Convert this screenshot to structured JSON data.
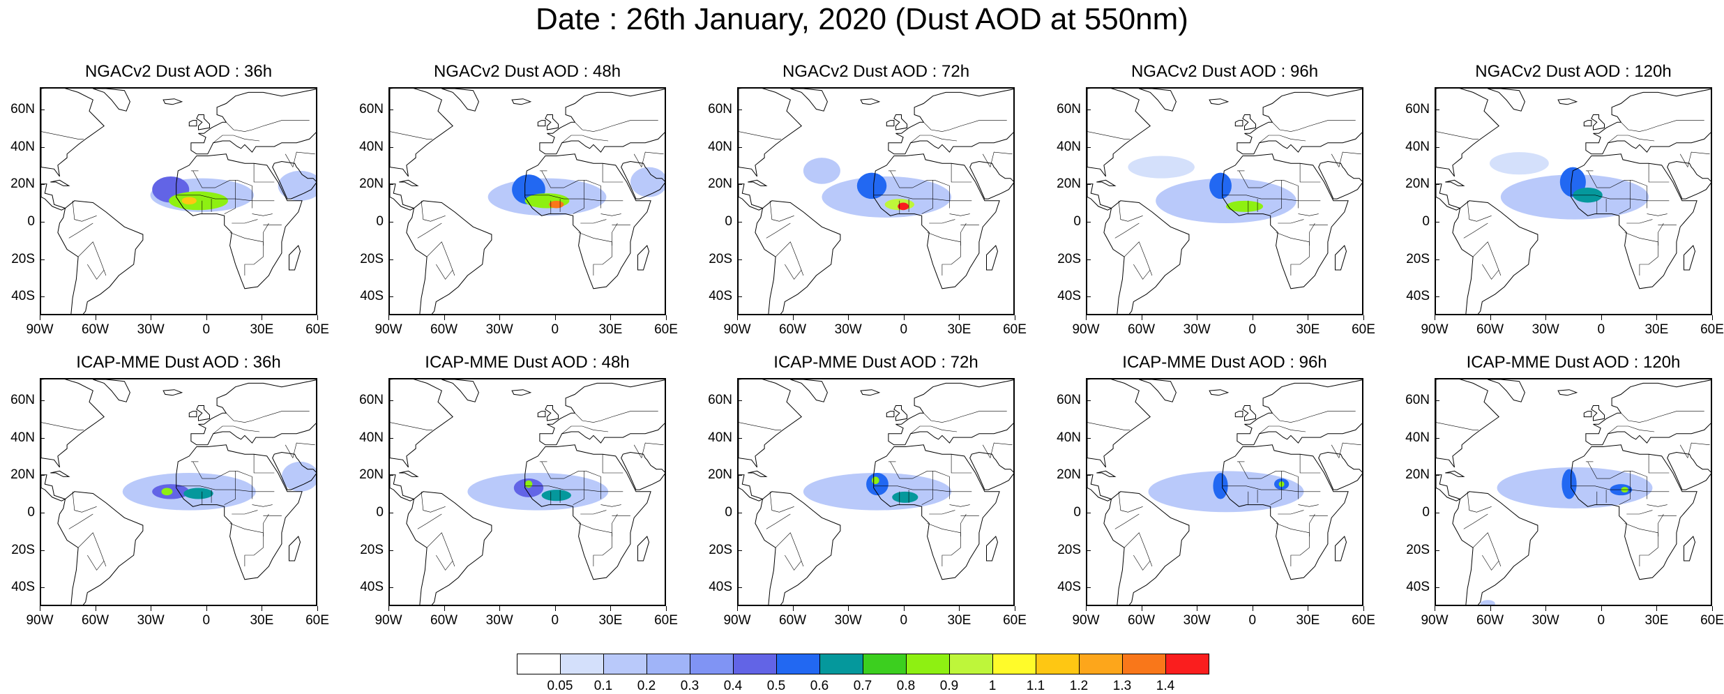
{
  "figure": {
    "title": "Date : 26th January, 2020 (Dust AOD at 550nm)"
  },
  "axes": {
    "y_ticks": [
      {
        "lat": 60,
        "label": "60N"
      },
      {
        "lat": 40,
        "label": "40N"
      },
      {
        "lat": 20,
        "label": "20N"
      },
      {
        "lat": 0,
        "label": "0"
      },
      {
        "lat": -20,
        "label": "20S"
      },
      {
        "lat": -40,
        "label": "40S"
      }
    ],
    "x_ticks": [
      {
        "lon": -90,
        "label": "90W"
      },
      {
        "lon": -60,
        "label": "60W"
      },
      {
        "lon": -30,
        "label": "30W"
      },
      {
        "lon": 0,
        "label": "0"
      },
      {
        "lon": 30,
        "label": "30E"
      },
      {
        "lon": 60,
        "label": "60E"
      }
    ],
    "lon_range": [
      -90,
      60
    ],
    "lat_range": [
      -50,
      72
    ]
  },
  "panels": [
    {
      "title": "NGACv2 Dust AOD : 36h",
      "model": "NGACv2",
      "lead": "36h",
      "dust": [
        {
          "lon": -3,
          "lat": 15,
          "rlon": 28,
          "rlat": 9,
          "aod": 0.18
        },
        {
          "lon": -20,
          "lat": 18,
          "rlon": 10,
          "rlat": 7,
          "aod": 0.45
        },
        {
          "lon": -5,
          "lat": 12,
          "rlon": 16,
          "rlat": 5,
          "aod": 0.8
        },
        {
          "lon": -10,
          "lat": 12,
          "rlon": 4,
          "rlat": 2,
          "aod": 1.1
        },
        {
          "lon": 50,
          "lat": 20,
          "rlon": 12,
          "rlat": 8,
          "aod": 0.12
        }
      ]
    },
    {
      "title": "NGACv2 Dust AOD : 48h",
      "model": "NGACv2",
      "lead": "48h",
      "dust": [
        {
          "lon": -5,
          "lat": 14,
          "rlon": 32,
          "rlat": 10,
          "aod": 0.18
        },
        {
          "lon": -15,
          "lat": 18,
          "rlon": 9,
          "rlat": 8,
          "aod": 0.5
        },
        {
          "lon": -5,
          "lat": 12,
          "rlon": 12,
          "rlat": 4,
          "aod": 0.85
        },
        {
          "lon": 0,
          "lat": 10,
          "rlon": 4,
          "rlat": 2,
          "aod": 1.3
        },
        {
          "lon": 50,
          "lat": 22,
          "rlon": 10,
          "rlat": 8,
          "aod": 0.12
        }
      ]
    },
    {
      "title": "NGACv2 Dust AOD : 72h",
      "model": "NGACv2",
      "lead": "72h",
      "dust": [
        {
          "lon": -10,
          "lat": 14,
          "rlon": 35,
          "rlat": 11,
          "aod": 0.15
        },
        {
          "lon": -18,
          "lat": 20,
          "rlon": 8,
          "rlat": 7,
          "aod": 0.55
        },
        {
          "lon": -3,
          "lat": 10,
          "rlon": 8,
          "rlat": 3,
          "aod": 0.9
        },
        {
          "lon": -1,
          "lat": 9,
          "rlon": 3,
          "rlat": 2,
          "aod": 1.4
        },
        {
          "lon": -45,
          "lat": 28,
          "rlon": 10,
          "rlat": 7,
          "aod": 0.1
        }
      ]
    },
    {
      "title": "NGACv2 Dust AOD : 96h",
      "model": "NGACv2",
      "lead": "96h",
      "dust": [
        {
          "lon": -15,
          "lat": 12,
          "rlon": 38,
          "rlat": 12,
          "aod": 0.12
        },
        {
          "lon": -18,
          "lat": 20,
          "rlon": 6,
          "rlat": 7,
          "aod": 0.5
        },
        {
          "lon": -5,
          "lat": 9,
          "rlon": 10,
          "rlat": 3,
          "aod": 0.8
        },
        {
          "lon": -50,
          "lat": 30,
          "rlon": 18,
          "rlat": 6,
          "aod": 0.08
        }
      ]
    },
    {
      "title": "NGACv2 Dust AOD : 120h",
      "model": "NGACv2",
      "lead": "120h",
      "dust": [
        {
          "lon": -15,
          "lat": 14,
          "rlon": 40,
          "rlat": 12,
          "aod": 0.1
        },
        {
          "lon": -16,
          "lat": 22,
          "rlon": 7,
          "rlat": 8,
          "aod": 0.5
        },
        {
          "lon": -8,
          "lat": 15,
          "rlon": 8,
          "rlat": 4,
          "aod": 0.65
        },
        {
          "lon": -45,
          "lat": 32,
          "rlon": 16,
          "rlat": 6,
          "aod": 0.08
        }
      ]
    },
    {
      "title": "ICAP-MME Dust AOD : 36h",
      "model": "ICAP-MME",
      "lead": "36h",
      "dust": [
        {
          "lon": -10,
          "lat": 12,
          "rlon": 36,
          "rlat": 10,
          "aod": 0.15
        },
        {
          "lon": -20,
          "lat": 12,
          "rlon": 10,
          "rlat": 4,
          "aod": 0.45
        },
        {
          "lon": -5,
          "lat": 11,
          "rlon": 8,
          "rlat": 3,
          "aod": 0.6
        },
        {
          "lon": -22,
          "lat": 12,
          "rlon": 3,
          "rlat": 2,
          "aod": 0.85
        },
        {
          "lon": 50,
          "lat": 20,
          "rlon": 10,
          "rlat": 8,
          "aod": 0.15
        }
      ]
    },
    {
      "title": "ICAP-MME Dust AOD : 48h",
      "model": "ICAP-MME",
      "lead": "48h",
      "dust": [
        {
          "lon": -10,
          "lat": 12,
          "rlon": 38,
          "rlat": 10,
          "aod": 0.15
        },
        {
          "lon": -15,
          "lat": 14,
          "rlon": 8,
          "rlat": 5,
          "aod": 0.45
        },
        {
          "lon": 0,
          "lat": 10,
          "rlon": 8,
          "rlat": 3,
          "aod": 0.6
        },
        {
          "lon": -15,
          "lat": 16,
          "rlon": 2,
          "rlat": 2,
          "aod": 0.85
        }
      ]
    },
    {
      "title": "ICAP-MME Dust AOD : 72h",
      "model": "ICAP-MME",
      "lead": "72h",
      "dust": [
        {
          "lon": -15,
          "lat": 12,
          "rlon": 40,
          "rlat": 10,
          "aod": 0.15
        },
        {
          "lon": -15,
          "lat": 16,
          "rlon": 6,
          "rlat": 6,
          "aod": 0.5
        },
        {
          "lon": 0,
          "lat": 9,
          "rlon": 7,
          "rlat": 3,
          "aod": 0.6
        },
        {
          "lon": -16,
          "lat": 18,
          "rlon": 2,
          "rlat": 2,
          "aod": 0.85
        }
      ]
    },
    {
      "title": "ICAP-MME Dust AOD : 96h",
      "model": "ICAP-MME",
      "lead": "96h",
      "dust": [
        {
          "lon": -15,
          "lat": 12,
          "rlon": 42,
          "rlat": 11,
          "aod": 0.12
        },
        {
          "lon": -18,
          "lat": 15,
          "rlon": 4,
          "rlat": 7,
          "aod": 0.5
        },
        {
          "lon": 15,
          "lat": 16,
          "rlon": 4,
          "rlat": 3,
          "aod": 0.55
        },
        {
          "lon": 15,
          "lat": 16,
          "rlon": 1.5,
          "rlat": 1.5,
          "aod": 0.85
        }
      ]
    },
    {
      "title": "ICAP-MME Dust AOD : 120h",
      "model": "ICAP-MME",
      "lead": "120h",
      "dust": [
        {
          "lon": -15,
          "lat": 14,
          "rlon": 42,
          "rlat": 11,
          "aod": 0.12
        },
        {
          "lon": -18,
          "lat": 16,
          "rlon": 4,
          "rlat": 8,
          "aod": 0.5
        },
        {
          "lon": 10,
          "lat": 13,
          "rlon": 6,
          "rlat": 3,
          "aod": 0.55
        },
        {
          "lon": 12,
          "lat": 13,
          "rlon": 2,
          "rlat": 1.5,
          "aod": 0.85
        },
        {
          "lon": -62,
          "lat": -48,
          "rlon": 4,
          "rlat": 2,
          "aod": 0.12
        }
      ]
    }
  ],
  "colorbar": {
    "colors": [
      "#ffffff",
      "#d4e0fb",
      "#b9c9fa",
      "#a0b4f8",
      "#8094f4",
      "#6264e6",
      "#2268f2",
      "#05989c",
      "#3ccf1f",
      "#8ef012",
      "#bef63a",
      "#fffb2a",
      "#fec713",
      "#fda61b",
      "#f9771a",
      "#fa1e1e"
    ],
    "labels": [
      "0.05",
      "0.1",
      "0.2",
      "0.3",
      "0.4",
      "0.5",
      "0.6",
      "0.7",
      "0.8",
      "0.9",
      "1",
      "1.1",
      "1.2",
      "1.3",
      "1.4"
    ],
    "thresholds": [
      0.05,
      0.1,
      0.2,
      0.3,
      0.4,
      0.5,
      0.6,
      0.7,
      0.8,
      0.9,
      1,
      1.1,
      1.2,
      1.3,
      1.4
    ]
  }
}
